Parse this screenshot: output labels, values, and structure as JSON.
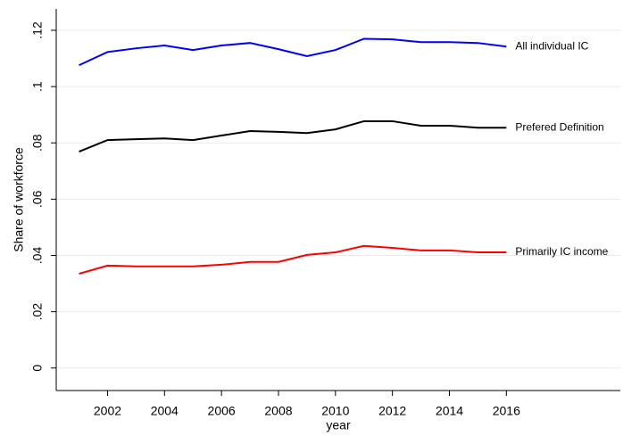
{
  "chart_data": {
    "type": "line",
    "x_label": "year",
    "y_label": "Share of workforce",
    "x": [
      2001,
      2002,
      2003,
      2004,
      2005,
      2006,
      2007,
      2008,
      2009,
      2010,
      2011,
      2012,
      2013,
      2014,
      2015,
      2016
    ],
    "series": [
      {
        "name": "All individual IC",
        "color": "#0000ff",
        "values": [
          0.1076,
          0.1123,
          0.1136,
          0.1146,
          0.113,
          0.1146,
          0.1155,
          0.1133,
          0.1108,
          0.113,
          0.117,
          0.1168,
          0.1158,
          0.1158,
          0.1155,
          0.1142
        ]
      },
      {
        "name": "Prefered Definition",
        "color": "#000000",
        "values": [
          0.0769,
          0.081,
          0.0813,
          0.0816,
          0.081,
          0.0826,
          0.0842,
          0.0839,
          0.0835,
          0.0848,
          0.0877,
          0.0877,
          0.0861,
          0.0861,
          0.0854,
          0.0854
        ]
      },
      {
        "name": "Primarily IC income",
        "color": "#ff0000",
        "values": [
          0.0335,
          0.0364,
          0.0361,
          0.0361,
          0.0361,
          0.0367,
          0.0377,
          0.0377,
          0.0402,
          0.0411,
          0.0434,
          0.0427,
          0.0418,
          0.0418,
          0.0411,
          0.0411
        ]
      }
    ],
    "xlim": [
      2000.2,
      2020
    ],
    "xticks": [
      2002,
      2004,
      2006,
      2008,
      2010,
      2012,
      2014,
      2016
    ],
    "ylim": [
      -0.008,
      0.1276
    ],
    "yticks": [
      0,
      {
        "value": 0.02,
        "label": ".02"
      },
      {
        "value": 0.04,
        "label": ".04"
      },
      {
        "value": 0.06,
        "label": ".06"
      },
      {
        "value": 0.08,
        "label": ".08"
      },
      {
        "value": 0.1,
        "label": ".1"
      },
      {
        "value": 0.12,
        "label": ".12"
      }
    ],
    "grid": true
  }
}
